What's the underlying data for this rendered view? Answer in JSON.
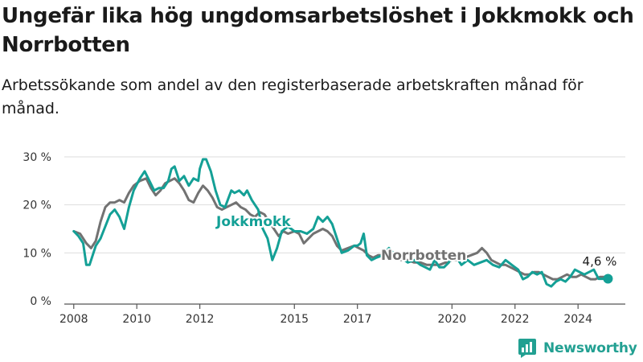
{
  "header": {
    "title": "Ungefär lika hög ungdomsarbetslöshet i Jokkmokk och Norrbotten",
    "subtitle": "Arbetssökande som andel av den registerbaserade arbetskraften månad för månad."
  },
  "branding": {
    "name": "Newsworthy",
    "icon": "newsworthy-logo-icon",
    "color": "#22a092"
  },
  "colors": {
    "Jokkmokk": "#14a096",
    "Norrbotten": "#727272",
    "grid": "#dddddd",
    "axis": "#555555"
  },
  "chart_data": {
    "type": "line",
    "ylim": [
      0,
      30
    ],
    "yticks": [
      0,
      10,
      20,
      30
    ],
    "ytick_labels": [
      "0 %",
      "10 %",
      "20 %",
      "30 %"
    ],
    "xticks": [
      2008,
      2010,
      2012,
      2015,
      2017,
      2020,
      2022,
      2024
    ],
    "xtick_labels": [
      "2008",
      "2010",
      "2012",
      "2015",
      "2017",
      "2020",
      "2022",
      "2024"
    ],
    "xlim": [
      2007.7,
      2025.5
    ],
    "last_value_label": "4,6 %",
    "series": [
      {
        "name": "Jokkmokk",
        "label": "Jokkmokk",
        "points": [
          [
            2008.0,
            14.5
          ],
          [
            2008.15,
            13.5
          ],
          [
            2008.3,
            12.0
          ],
          [
            2008.4,
            7.5
          ],
          [
            2008.5,
            7.5
          ],
          [
            2008.7,
            11.5
          ],
          [
            2008.85,
            13.0
          ],
          [
            2009.0,
            15.5
          ],
          [
            2009.15,
            18.0
          ],
          [
            2009.3,
            19.0
          ],
          [
            2009.45,
            17.5
          ],
          [
            2009.6,
            15.0
          ],
          [
            2009.75,
            19.5
          ],
          [
            2009.9,
            23.0
          ],
          [
            2010.1,
            25.5
          ],
          [
            2010.25,
            27.0
          ],
          [
            2010.4,
            25.0
          ],
          [
            2010.55,
            23.0
          ],
          [
            2010.7,
            23.5
          ],
          [
            2010.85,
            23.5
          ],
          [
            2011.0,
            25.0
          ],
          [
            2011.1,
            27.5
          ],
          [
            2011.2,
            28.0
          ],
          [
            2011.35,
            25.0
          ],
          [
            2011.5,
            26.0
          ],
          [
            2011.65,
            24.0
          ],
          [
            2011.8,
            25.5
          ],
          [
            2011.95,
            25.0
          ],
          [
            2012.0,
            27.5
          ],
          [
            2012.1,
            29.5
          ],
          [
            2012.2,
            29.5
          ],
          [
            2012.35,
            27.0
          ],
          [
            2012.5,
            23.0
          ],
          [
            2012.65,
            20.0
          ],
          [
            2012.8,
            19.5
          ],
          [
            2013.0,
            23.0
          ],
          [
            2013.1,
            22.5
          ],
          [
            2013.25,
            23.0
          ],
          [
            2013.4,
            22.0
          ],
          [
            2013.5,
            23.0
          ],
          [
            2013.65,
            21.0
          ],
          [
            2013.85,
            19.0
          ],
          [
            2014.0,
            15.0
          ],
          [
            2014.15,
            13.0
          ],
          [
            2014.3,
            8.5
          ],
          [
            2014.45,
            11.0
          ],
          [
            2014.6,
            14.5
          ],
          [
            2014.8,
            15.5
          ],
          [
            2015.0,
            14.5
          ],
          [
            2015.2,
            14.5
          ],
          [
            2015.4,
            14.0
          ],
          [
            2015.6,
            15.0
          ],
          [
            2015.75,
            17.5
          ],
          [
            2015.9,
            16.5
          ],
          [
            2016.05,
            17.5
          ],
          [
            2016.2,
            16.0
          ],
          [
            2016.35,
            13.0
          ],
          [
            2016.5,
            10.0
          ],
          [
            2016.7,
            10.5
          ],
          [
            2016.9,
            11.5
          ],
          [
            2017.0,
            11.5
          ],
          [
            2017.1,
            12.0
          ],
          [
            2017.2,
            14.0
          ],
          [
            2017.3,
            9.5
          ],
          [
            2017.45,
            8.5
          ],
          [
            2017.6,
            9.0
          ],
          [
            2017.8,
            9.5
          ],
          [
            2018.0,
            11.0
          ],
          [
            2018.2,
            9.5
          ],
          [
            2018.4,
            9.0
          ],
          [
            2018.6,
            8.0
          ],
          [
            2018.8,
            8.5
          ],
          [
            2019.0,
            7.5
          ],
          [
            2019.15,
            7.0
          ],
          [
            2019.3,
            6.5
          ],
          [
            2019.45,
            8.5
          ],
          [
            2019.6,
            7.0
          ],
          [
            2019.75,
            7.0
          ],
          [
            2019.9,
            8.0
          ],
          [
            2020.05,
            10.0
          ],
          [
            2020.15,
            9.0
          ],
          [
            2020.3,
            7.5
          ],
          [
            2020.5,
            8.5
          ],
          [
            2020.7,
            7.5
          ],
          [
            2020.9,
            8.0
          ],
          [
            2021.1,
            8.5
          ],
          [
            2021.3,
            7.5
          ],
          [
            2021.5,
            7.0
          ],
          [
            2021.7,
            8.5
          ],
          [
            2021.9,
            7.5
          ],
          [
            2022.1,
            6.5
          ],
          [
            2022.25,
            4.5
          ],
          [
            2022.4,
            5.0
          ],
          [
            2022.55,
            6.0
          ],
          [
            2022.7,
            5.5
          ],
          [
            2022.85,
            6.0
          ],
          [
            2023.0,
            3.5
          ],
          [
            2023.15,
            3.0
          ],
          [
            2023.3,
            4.0
          ],
          [
            2023.45,
            4.5
          ],
          [
            2023.6,
            4.0
          ],
          [
            2023.75,
            5.0
          ],
          [
            2023.9,
            6.5
          ],
          [
            2024.05,
            6.0
          ],
          [
            2024.2,
            5.5
          ],
          [
            2024.35,
            6.0
          ],
          [
            2024.5,
            6.5
          ],
          [
            2024.65,
            4.6
          ],
          [
            2024.95,
            4.6
          ]
        ]
      },
      {
        "name": "Norrbotten",
        "label": "Norrbotten",
        "points": [
          [
            2008.0,
            14.5
          ],
          [
            2008.2,
            14.0
          ],
          [
            2008.4,
            12.0
          ],
          [
            2008.55,
            11.0
          ],
          [
            2008.7,
            12.5
          ],
          [
            2008.85,
            16.5
          ],
          [
            2009.0,
            19.5
          ],
          [
            2009.15,
            20.5
          ],
          [
            2009.3,
            20.5
          ],
          [
            2009.45,
            21.0
          ],
          [
            2009.6,
            20.5
          ],
          [
            2009.75,
            22.5
          ],
          [
            2009.9,
            24.0
          ],
          [
            2010.1,
            25.0
          ],
          [
            2010.3,
            25.5
          ],
          [
            2010.45,
            23.5
          ],
          [
            2010.6,
            22.0
          ],
          [
            2010.75,
            23.0
          ],
          [
            2010.9,
            24.5
          ],
          [
            2011.05,
            25.0
          ],
          [
            2011.2,
            25.5
          ],
          [
            2011.35,
            24.5
          ],
          [
            2011.5,
            23.0
          ],
          [
            2011.65,
            21.0
          ],
          [
            2011.8,
            20.5
          ],
          [
            2011.95,
            22.5
          ],
          [
            2012.1,
            24.0
          ],
          [
            2012.25,
            23.0
          ],
          [
            2012.4,
            21.5
          ],
          [
            2012.55,
            19.5
          ],
          [
            2012.7,
            19.0
          ],
          [
            2012.85,
            19.5
          ],
          [
            2013.0,
            20.0
          ],
          [
            2013.15,
            20.5
          ],
          [
            2013.3,
            19.5
          ],
          [
            2013.45,
            19.0
          ],
          [
            2013.6,
            18.0
          ],
          [
            2013.75,
            17.5
          ],
          [
            2013.9,
            18.5
          ],
          [
            2014.05,
            18.0
          ],
          [
            2014.2,
            16.5
          ],
          [
            2014.35,
            15.0
          ],
          [
            2014.5,
            13.5
          ],
          [
            2014.65,
            14.5
          ],
          [
            2014.8,
            14.0
          ],
          [
            2015.0,
            14.5
          ],
          [
            2015.15,
            14.0
          ],
          [
            2015.3,
            12.0
          ],
          [
            2015.45,
            13.0
          ],
          [
            2015.6,
            14.0
          ],
          [
            2015.75,
            14.5
          ],
          [
            2015.9,
            15.0
          ],
          [
            2016.05,
            14.5
          ],
          [
            2016.2,
            13.5
          ],
          [
            2016.35,
            11.5
          ],
          [
            2016.5,
            10.5
          ],
          [
            2016.7,
            11.0
          ],
          [
            2016.9,
            11.5
          ],
          [
            2017.05,
            11.0
          ],
          [
            2017.2,
            10.5
          ],
          [
            2017.35,
            9.5
          ],
          [
            2017.5,
            9.0
          ],
          [
            2017.65,
            9.5
          ],
          [
            2017.8,
            9.5
          ],
          [
            2018.0,
            9.0
          ],
          [
            2018.2,
            9.0
          ],
          [
            2018.4,
            8.5
          ],
          [
            2018.6,
            8.5
          ],
          [
            2018.8,
            8.0
          ],
          [
            2019.0,
            8.0
          ],
          [
            2019.2,
            7.5
          ],
          [
            2019.4,
            7.5
          ],
          [
            2019.6,
            7.5
          ],
          [
            2019.8,
            8.0
          ],
          [
            2020.0,
            8.5
          ],
          [
            2020.2,
            8.5
          ],
          [
            2020.4,
            9.0
          ],
          [
            2020.6,
            9.5
          ],
          [
            2020.8,
            10.0
          ],
          [
            2020.95,
            11.0
          ],
          [
            2021.1,
            10.0
          ],
          [
            2021.25,
            8.5
          ],
          [
            2021.4,
            8.0
          ],
          [
            2021.55,
            7.5
          ],
          [
            2021.7,
            7.5
          ],
          [
            2021.85,
            7.0
          ],
          [
            2022.0,
            6.5
          ],
          [
            2022.15,
            6.0
          ],
          [
            2022.3,
            5.5
          ],
          [
            2022.45,
            5.5
          ],
          [
            2022.6,
            6.0
          ],
          [
            2022.75,
            6.0
          ],
          [
            2022.9,
            5.5
          ],
          [
            2023.05,
            5.0
          ],
          [
            2023.2,
            4.5
          ],
          [
            2023.35,
            4.5
          ],
          [
            2023.5,
            5.0
          ],
          [
            2023.65,
            5.5
          ],
          [
            2023.8,
            5.0
          ],
          [
            2023.95,
            5.0
          ],
          [
            2024.1,
            5.5
          ],
          [
            2024.25,
            5.0
          ],
          [
            2024.4,
            4.5
          ],
          [
            2024.55,
            4.5
          ],
          [
            2024.7,
            5.0
          ],
          [
            2024.85,
            5.0
          ]
        ]
      }
    ]
  }
}
